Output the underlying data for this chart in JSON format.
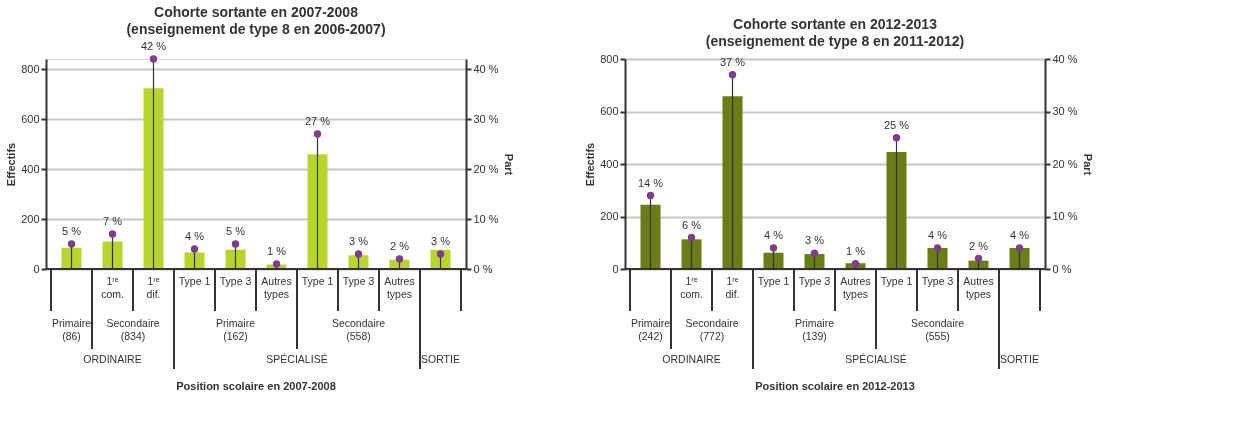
{
  "chart_data": [
    {
      "type": "bar",
      "title": "Cohorte sortante en 2007-2008",
      "subtitle": "(enseignement de type 8 en 2006-2007)",
      "xlabel": "Position scolaire en 2007-2008",
      "ylabel": "Effectifs",
      "y2label": "Part",
      "categories": [
        null,
        "1ʳᵉ com.",
        "1ʳᵉ dif.",
        "Type 1",
        "Type 3",
        "Autres types",
        "Type 1",
        "Type 3",
        "Autres types",
        null
      ],
      "annotations": [
        "Primaire (86)",
        "Secondaire (834)",
        "Primaire (162)",
        "Secondaire (558)",
        "ORDINAIRE",
        "SPÉCIALISÉ",
        "SORTIE"
      ],
      "series": [
        {
          "type": "bar",
          "color": "#b8d42f",
          "values": [
            85,
            110,
            723,
            66,
            77,
            18,
            459,
            55,
            37,
            77
          ]
        },
        {
          "type": "lollipop",
          "axis": "y2",
          "color": "#7b3f8c",
          "values": [
            5,
            7,
            42,
            4,
            5,
            1,
            27,
            3,
            2,
            3
          ],
          "value_labels": [
            "5 %",
            "7 %",
            "42 %",
            "4 %",
            "5 %",
            "1 %",
            "27 %",
            "3 %",
            "2 %",
            "3 %"
          ]
        }
      ],
      "ylim": [
        0,
        840
      ],
      "yticks": [
        0,
        200,
        400,
        600,
        800
      ],
      "y2lim": [
        0,
        42
      ],
      "y2ticks": [
        {
          "value": 0,
          "label": "0 %"
        },
        {
          "value": 10,
          "label": "10 %"
        },
        {
          "value": 20,
          "label": "20 %"
        },
        {
          "value": 30,
          "label": "30 %"
        },
        {
          "value": 40,
          "label": "40 %"
        }
      ],
      "grid": "y"
    },
    {
      "type": "bar",
      "title": "Cohorte sortante en 2012-2013",
      "subtitle": "(enseignement de type 8 en 2011-2012)",
      "xlabel": "Position scolaire en 2012-2013",
      "ylabel": "Effectifs",
      "y2label": "Part",
      "categories": [
        null,
        "1ʳᵉ com.",
        "1ʳᵉ dif.",
        "Type 1",
        "Type 3",
        "Autres types",
        "Type 1",
        "Type 3",
        "Autres types",
        null
      ],
      "annotations": [
        "Primaire (242)",
        "Secondaire (772)",
        "Primaire (139)",
        "Secondaire (555)",
        "ORDINAIRE",
        "SPÉCIALISÉ",
        "SORTIE"
      ],
      "series": [
        {
          "type": "bar",
          "color": "#6b7d17",
          "values": [
            245,
            113,
            658,
            62,
            57,
            22,
            446,
            80,
            32,
            80
          ]
        },
        {
          "type": "lollipop",
          "axis": "y2",
          "color": "#7b3f8c",
          "values": [
            14,
            6,
            37,
            4,
            3,
            1,
            25,
            4,
            2,
            4
          ],
          "value_labels": [
            "14 %",
            "6 %",
            "37 %",
            "4 %",
            "3 %",
            "1 %",
            "25 %",
            "4 %",
            "2 %",
            "4 %"
          ]
        }
      ],
      "ylim": [
        0,
        800
      ],
      "yticks": [
        0,
        200,
        400,
        600,
        800
      ],
      "y2lim": [
        0,
        40
      ],
      "y2ticks": [
        {
          "value": 0,
          "label": "0 %"
        },
        {
          "value": 10,
          "label": "10 %"
        },
        {
          "value": 20,
          "label": "20 %"
        },
        {
          "value": 30,
          "label": "30 %"
        },
        {
          "value": 40,
          "label": "40 %"
        }
      ],
      "grid": "y"
    }
  ]
}
